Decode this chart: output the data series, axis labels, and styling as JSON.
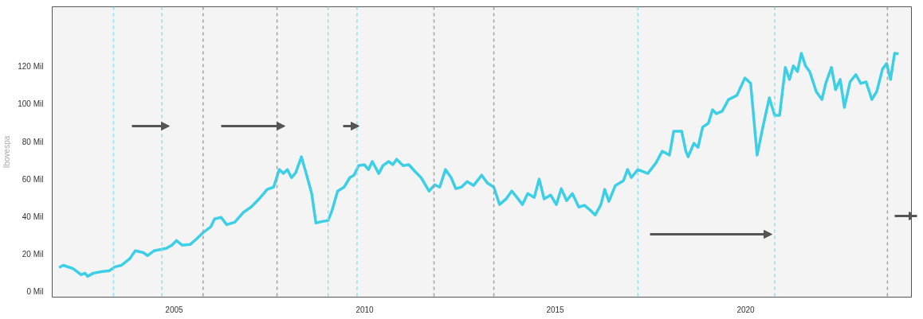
{
  "chart_data": {
    "type": "line",
    "ylabel": "Ibovespa",
    "x": [
      2001.98,
      2002.09,
      2002.34,
      2002.56,
      2002.66,
      2002.73,
      2002.88,
      2003.09,
      2003.3,
      2003.45,
      2003.62,
      2003.83,
      2003.98,
      2004.19,
      2004.3,
      2004.47,
      2004.79,
      2004.94,
      2005.06,
      2005.21,
      2005.42,
      2005.59,
      2005.74,
      2005.96,
      2006.06,
      2006.23,
      2006.38,
      2006.59,
      2006.81,
      2007.02,
      2007.23,
      2007.44,
      2007.61,
      2007.76,
      2007.87,
      2007.97,
      2008.08,
      2008.19,
      2008.34,
      2008.46,
      2008.61,
      2008.72,
      2008.89,
      2009.04,
      2009.14,
      2009.29,
      2009.46,
      2009.61,
      2009.72,
      2009.84,
      2009.99,
      2010.1,
      2010.2,
      2010.37,
      2010.48,
      2010.63,
      2010.74,
      2010.84,
      2011.01,
      2011.16,
      2011.31,
      2011.48,
      2011.69,
      2011.84,
      2011.97,
      2012.12,
      2012.27,
      2012.39,
      2012.54,
      2012.69,
      2012.86,
      2013.07,
      2013.22,
      2013.39,
      2013.54,
      2013.71,
      2013.86,
      2014.03,
      2014.14,
      2014.28,
      2014.45,
      2014.58,
      2014.71,
      2014.88,
      2015.03,
      2015.16,
      2015.3,
      2015.45,
      2015.62,
      2015.77,
      2015.9,
      2016.05,
      2016.2,
      2016.3,
      2016.41,
      2016.58,
      2016.79,
      2016.9,
      2017.0,
      2017.17,
      2017.43,
      2017.64,
      2017.81,
      2018.0,
      2018.11,
      2018.32,
      2018.43,
      2018.49,
      2018.64,
      2018.75,
      2018.87,
      2019.02,
      2019.13,
      2019.23,
      2019.38,
      2019.55,
      2019.77,
      2019.98,
      2020.13,
      2020.3,
      2020.45,
      2020.62,
      2020.76,
      2020.89,
      2021.04,
      2021.15,
      2021.25,
      2021.36,
      2021.46,
      2021.57,
      2021.68,
      2021.85,
      2022.0,
      2022.1,
      2022.25,
      2022.36,
      2022.48,
      2022.59,
      2022.74,
      2022.89,
      2023.02,
      2023.16,
      2023.31,
      2023.44,
      2023.59,
      2023.7,
      2023.8,
      2023.91,
      2024.01
    ],
    "series": [
      {
        "color": "#3ccfe6",
        "values": [
          12.8,
          14.0,
          12.3,
          8.9,
          9.8,
          8.1,
          9.8,
          10.6,
          11.1,
          13.2,
          14.0,
          17.4,
          21.7,
          20.8,
          19.1,
          21.7,
          23.0,
          24.7,
          27.2,
          24.7,
          25.1,
          28.1,
          31.1,
          34.5,
          38.7,
          39.6,
          35.7,
          37.0,
          42.1,
          45.1,
          49.4,
          54.5,
          55.7,
          65.1,
          63.0,
          65.1,
          60.8,
          63.4,
          71.9,
          63.4,
          52.3,
          36.6,
          37.4,
          37.9,
          43.0,
          53.6,
          55.7,
          60.8,
          62.1,
          67.2,
          67.7,
          65.1,
          69.4,
          63.0,
          67.2,
          69.4,
          67.7,
          70.6,
          67.2,
          67.7,
          64.3,
          60.8,
          53.6,
          57.0,
          55.7,
          65.1,
          60.8,
          54.9,
          55.7,
          58.7,
          56.6,
          62.1,
          57.9,
          55.7,
          46.4,
          49.4,
          53.6,
          49.4,
          46.4,
          52.3,
          50.2,
          60.0,
          49.4,
          51.5,
          46.4,
          54.9,
          48.5,
          52.3,
          45.1,
          46.0,
          43.8,
          40.8,
          46.4,
          54.5,
          48.1,
          56.6,
          59.1,
          65.1,
          60.8,
          65.1,
          63.0,
          68.5,
          74.9,
          72.8,
          85.5,
          85.5,
          74.9,
          71.9,
          79.1,
          77.0,
          87.7,
          89.8,
          97.0,
          94.9,
          96.2,
          102.5,
          104.7,
          114.0,
          111.1,
          72.8,
          87.7,
          103.4,
          94.0,
          94.0,
          119.6,
          113.2,
          120.4,
          117.4,
          127.2,
          120.4,
          117.4,
          106.8,
          102.5,
          111.1,
          119.6,
          107.7,
          113.2,
          98.3,
          111.9,
          115.8,
          111.1,
          111.9,
          102.5,
          106.8,
          118.7,
          121.7,
          113.2,
          127.2,
          126.8
        ]
      }
    ],
    "xlim": [
      2001.8,
      2024.35
    ],
    "ylim": [
      -3,
      152
    ],
    "xticks": [
      2005,
      2010,
      2015,
      2020
    ],
    "yticks": [
      {
        "value": 0,
        "label": "0 Mil"
      },
      {
        "value": 20,
        "label": "20 Mil"
      },
      {
        "value": 40,
        "label": "40 Mil"
      },
      {
        "value": 60,
        "label": "60 Mil"
      },
      {
        "value": 80,
        "label": "80 Mil"
      },
      {
        "value": 100,
        "label": "100 Mil"
      },
      {
        "value": 120,
        "label": "120 Mil"
      }
    ],
    "ref_lines": [
      {
        "axis": "x",
        "value": 2003.41,
        "color": "#8fdcea",
        "line_style": "dashed"
      },
      {
        "axis": "x",
        "value": 2004.68,
        "color": "#8fdcea",
        "line_style": "dashed"
      },
      {
        "axis": "x",
        "value": 2005.76,
        "color": "#a0a0a0",
        "line_style": "dashed"
      },
      {
        "axis": "x",
        "value": 2007.7,
        "color": "#a0a0a0",
        "line_style": "dashed"
      },
      {
        "axis": "x",
        "value": 2009.04,
        "color": "#8fdcea",
        "line_style": "dashed"
      },
      {
        "axis": "x",
        "value": 2009.8,
        "color": "#8fdcea",
        "line_style": "dashed"
      },
      {
        "axis": "x",
        "value": 2011.82,
        "color": "#a0a0a0",
        "line_style": "dashed"
      },
      {
        "axis": "x",
        "value": 2013.39,
        "color": "#a0a0a0",
        "line_style": "dashed"
      },
      {
        "axis": "x",
        "value": 2017.17,
        "color": "#8fdcea",
        "line_style": "dashed"
      },
      {
        "axis": "x",
        "value": 2020.76,
        "color": "#8fdcea",
        "line_style": "dashed"
      },
      {
        "axis": "x",
        "value": 2023.72,
        "color": "#a0a0a0",
        "line_style": "dashed"
      }
    ],
    "grid": false,
    "marker": "none",
    "line_style": "solid"
  }
}
